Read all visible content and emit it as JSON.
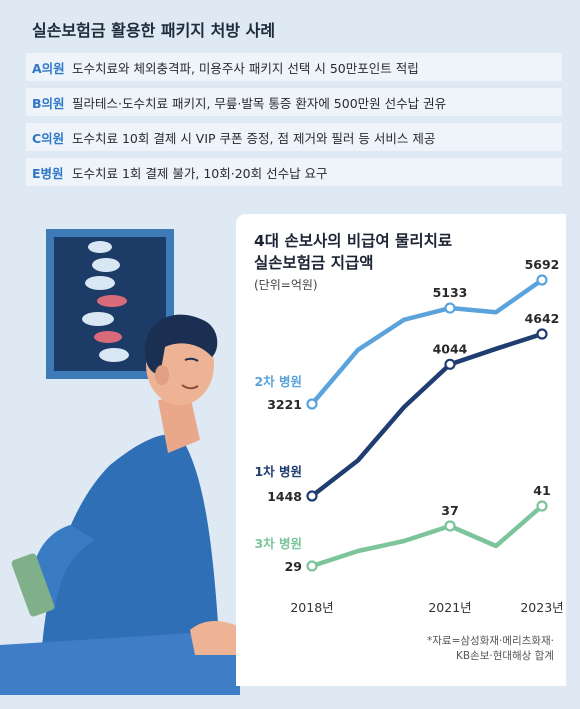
{
  "cases": {
    "title": "실손보험금 활용한 패키지 처방 사례",
    "items": [
      {
        "name": "A의원",
        "text": "도수치료와 체외충격파, 미용주사 패키지 선택 시 50만포인트 적립"
      },
      {
        "name": "B의원",
        "text": "필라테스·도수치료 패키지, 무릎·발목 통증 환자에 500만원 선수납 권유"
      },
      {
        "name": "C의원",
        "text": "도수치료 10회 결제 시 VIP 쿠폰 증정, 점 제거와 필러 등 서비스 제공"
      },
      {
        "name": "E병원",
        "text": "도수치료 1회 결제 불가, 10회·20회 선수납 요구"
      }
    ]
  },
  "chart_title_line1": "4대 손보사의 비급여 물리치료",
  "chart_title_line2": "실손보험금 지급액",
  "chart_unit": "(단위=억원)",
  "source_line1": "*자료=삼성화재·메리츠화재·",
  "source_line2": "KB손보·현대해상 합계",
  "colors": {
    "tier2": "#5aa3dc",
    "tier1": "#1f3d70",
    "tier3": "#7cc49c",
    "accent": "#2f77c7"
  },
  "chart_data": {
    "type": "line",
    "x": [
      2018,
      2019,
      2020,
      2021,
      2022,
      2023
    ],
    "x_tick_labels": [
      "2018년",
      "2021년",
      "2023년"
    ],
    "x_tick_values": [
      2018,
      2021,
      2023
    ],
    "ylim": [
      0,
      6000
    ],
    "grid": false,
    "series": [
      {
        "name": "2차 병원",
        "values": [
          3221,
          4300,
          4900,
          5133,
          5050,
          5692
        ],
        "label_points": [
          0,
          3,
          5
        ],
        "point_labels": [
          "3221",
          "5133",
          "5692"
        ]
      },
      {
        "name": "1차 병원",
        "values": [
          1448,
          2150,
          3200,
          4044,
          4350,
          4642
        ],
        "label_points": [
          0,
          3,
          5
        ],
        "point_labels": [
          "1448",
          "4044",
          "4642"
        ]
      },
      {
        "name": "3차 병원",
        "values": [
          29,
          32,
          34,
          37,
          33,
          41
        ],
        "label_points": [
          0,
          3,
          5
        ],
        "point_labels": [
          "29",
          "37",
          "41"
        ]
      }
    ]
  }
}
